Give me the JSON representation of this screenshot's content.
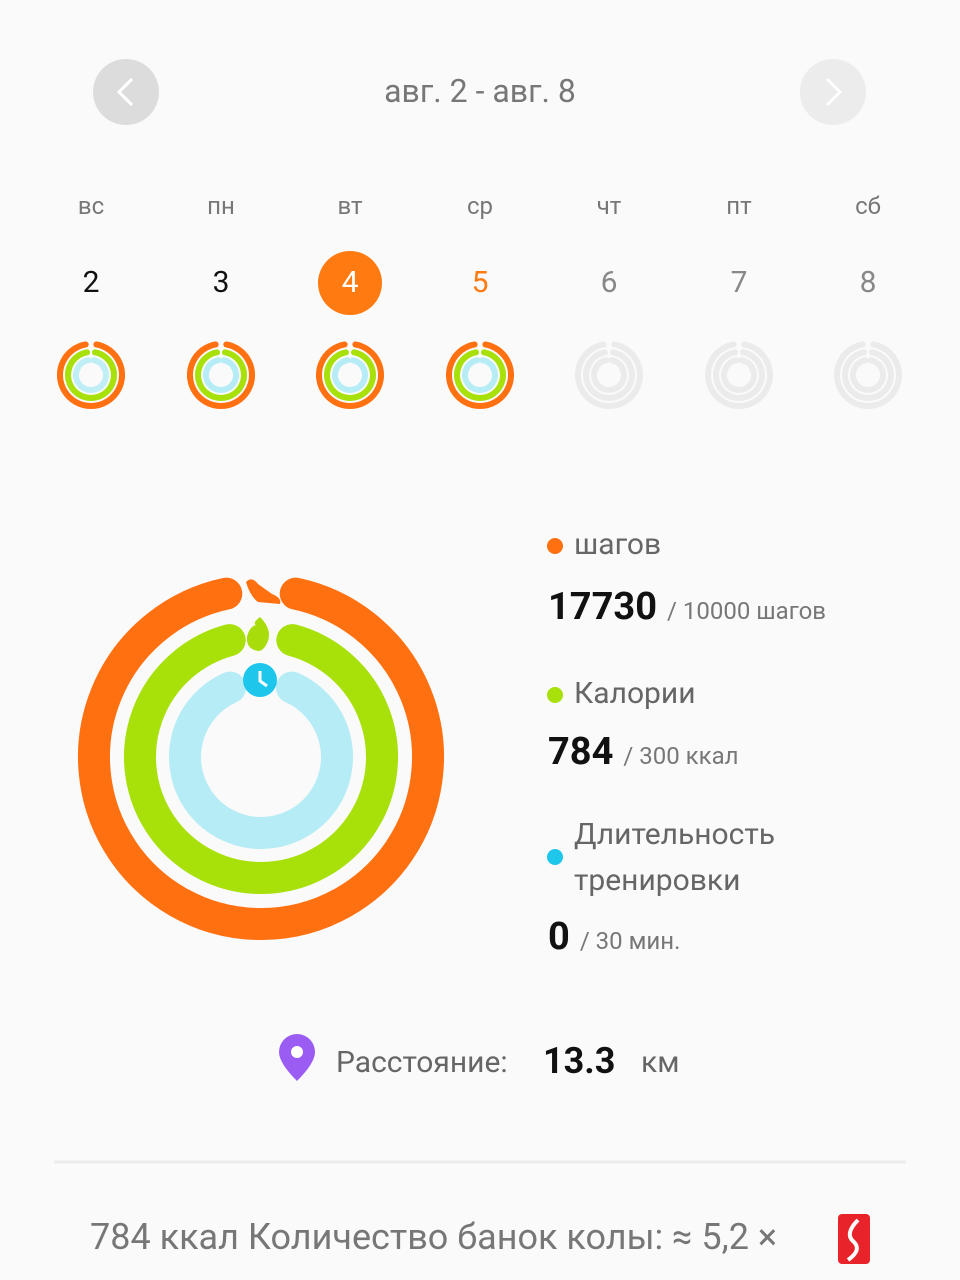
{
  "header": {
    "range": "авг. 2 - авг. 8"
  },
  "week": {
    "days": [
      {
        "weekday": "вс",
        "date": "2"
      },
      {
        "weekday": "пн",
        "date": "3"
      },
      {
        "weekday": "вт",
        "date": "4"
      },
      {
        "weekday": "ср",
        "date": "5"
      },
      {
        "weekday": "чт",
        "date": "6"
      },
      {
        "weekday": "пт",
        "date": "7"
      },
      {
        "weekday": "сб",
        "date": "8"
      }
    ]
  },
  "summary": {
    "metrics": [
      {
        "label": "шагов",
        "value": "17730",
        "goal": "/ 10000 шагов"
      },
      {
        "label": "Калории",
        "value": "784",
        "goal": "/ 300 ккал"
      },
      {
        "label": "Длительность тренировки",
        "value": "0",
        "goal": "/ 30 мин."
      }
    ]
  },
  "distance": {
    "label": "Расстояние:",
    "value": "13.3",
    "unit": "км"
  },
  "footer": {
    "text": "784 ккал Количество банок колы: ≈ 5,2 ×"
  }
}
